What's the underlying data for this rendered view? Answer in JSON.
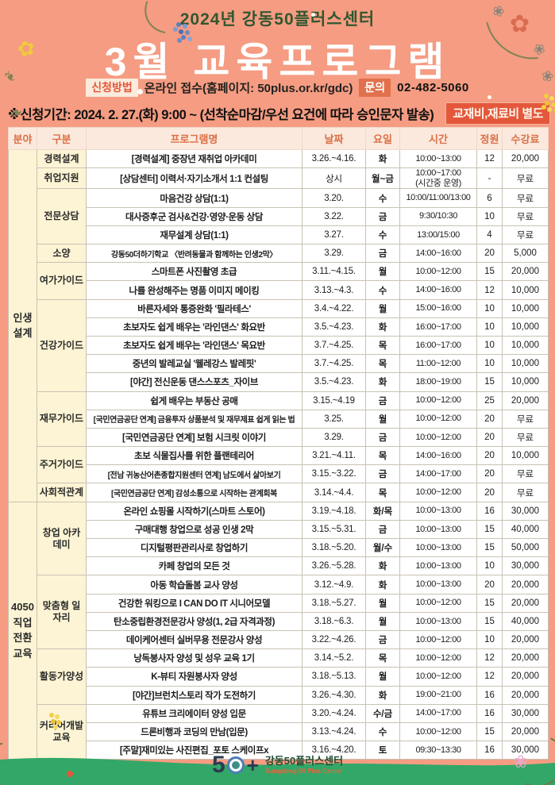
{
  "header": {
    "subtitle": "2024년 강동50플러스센터",
    "title": "3월 교육프로그램",
    "apply": {
      "label": "신청방법",
      "text": "온라인 접수(홈페이지: 50plus.or.kr/gdc)"
    },
    "contact": {
      "label": "문의",
      "phone": "02-482-5060"
    },
    "period": "※신청기간: 2024. 2. 27.(화) 9:00 ~ (선착순마감/우선 요건에 따라 승인문자 발송)",
    "fee_note": "교재비,재료비 별도"
  },
  "table": {
    "columns": [
      "분야",
      "구분",
      "프로그램명",
      "날짜",
      "요일",
      "시간",
      "정원",
      "수강료"
    ],
    "sections": [
      {
        "field": "인생\n설계",
        "groups": [
          {
            "name": "경력설계",
            "rows": [
              {
                "name": "[경력설계] 중장년 재취업 아카데미",
                "date": "3.26.~4.16.",
                "day": "화",
                "time": "10:00~13:00",
                "capacity": "12",
                "fee": "20,000"
              }
            ]
          },
          {
            "name": "취업지원",
            "rows": [
              {
                "name": "[상담센터] 이력서·자기소개서 1:1 컨설팅",
                "date": "상시",
                "day": "월~금",
                "time": "10:00~17:00\n(시간중 운영)",
                "capacity": "-",
                "fee": "무료"
              }
            ]
          },
          {
            "name": "전문상담",
            "rows": [
              {
                "name": "마음건강 상담(1:1)",
                "date": "3.20.",
                "day": "수",
                "time": "10:00/11:00/13:00",
                "capacity": "6",
                "fee": "무료"
              },
              {
                "name": "대사증후군 검사&건강·영양·운동 상담",
                "date": "3.22.",
                "day": "금",
                "time": "9:30/10:30",
                "capacity": "10",
                "fee": "무료"
              },
              {
                "name": "재무설계 상담(1:1)",
                "date": "3.27.",
                "day": "수",
                "time": "13:00/15:00",
                "capacity": "4",
                "fee": "무료"
              }
            ]
          },
          {
            "name": "소양",
            "rows": [
              {
                "name": "강동50더하기학교 〈반려동물과 함께하는 인생2막〉",
                "date": "3.29.",
                "day": "금",
                "time": "14:00~16:00",
                "capacity": "20",
                "fee": "5,000"
              }
            ]
          },
          {
            "name": "여가가이드",
            "rows": [
              {
                "name": "스마트폰 사진촬영 초급",
                "date": "3.11.~4.15.",
                "day": "월",
                "time": "10:00~12:00",
                "capacity": "15",
                "fee": "20,000"
              },
              {
                "name": "나를 완성해주는 명품 이미지 메이킹",
                "date": "3.13.~4.3.",
                "day": "수",
                "time": "14:00~16:00",
                "capacity": "12",
                "fee": "10,000"
              }
            ]
          },
          {
            "name": "건강가이드",
            "rows": [
              {
                "name": "바른자세와 통증완화 '필라테스'",
                "date": "3.4.~4.22.",
                "day": "월",
                "time": "15:00~16:00",
                "capacity": "10",
                "fee": "10,000"
              },
              {
                "name": "초보자도 쉽게 배우는 '라인댄스' 화요반",
                "date": "3.5.~4.23.",
                "day": "화",
                "time": "16:00~17:00",
                "capacity": "10",
                "fee": "10,000"
              },
              {
                "name": "초보자도 쉽게 배우는 '라인댄스' 목요반",
                "date": "3.7.~4.25.",
                "day": "목",
                "time": "16:00~17:00",
                "capacity": "10",
                "fee": "10,000"
              },
              {
                "name": "중년의 발레교실 '웰레강스 발레핏'",
                "date": "3.7.~4.25.",
                "day": "목",
                "time": "11:00~12:00",
                "capacity": "10",
                "fee": "10,000"
              },
              {
                "name": "[야간] 전신운동 댄스스포츠_자이브",
                "date": "3.5.~4.23.",
                "day": "화",
                "time": "18:00~19:00",
                "capacity": "15",
                "fee": "10,000"
              }
            ]
          },
          {
            "name": "재무가이드",
            "rows": [
              {
                "name": "쉽게 배우는 부동산 공매",
                "date": "3.15.~4.19",
                "day": "금",
                "time": "10:00~12:00",
                "capacity": "25",
                "fee": "20,000"
              },
              {
                "name": "[국민연금공단 연계] 금융투자 상품분석 및 재무제표 쉽게 읽는 법",
                "date": "3.25.",
                "day": "월",
                "time": "10:00~12:00",
                "capacity": "20",
                "fee": "무료"
              },
              {
                "name": "[국민연금공단 연계] 보험 시크릿 이야기",
                "date": "3.29.",
                "day": "금",
                "time": "10:00~12:00",
                "capacity": "20",
                "fee": "무료"
              }
            ]
          },
          {
            "name": "주거가이드",
            "rows": [
              {
                "name": "초보 식물집사를 위한 플랜테리어",
                "date": "3.21.~4.11.",
                "day": "목",
                "time": "14:00~16:00",
                "capacity": "20",
                "fee": "10,000"
              },
              {
                "name": "[전남 귀농산어촌종합지원센터 연계] 남도에서 살아보기",
                "date": "3.15.~3.22.",
                "day": "금",
                "time": "14:00~17:00",
                "capacity": "20",
                "fee": "무료"
              }
            ]
          },
          {
            "name": "사회적관계",
            "rows": [
              {
                "name": "[국민연금공단 연계] 감성소통으로 시작하는 관계회복",
                "date": "3.14.~4.4.",
                "day": "목",
                "time": "10:00~12:00",
                "capacity": "20",
                "fee": "무료"
              }
            ]
          }
        ]
      },
      {
        "field": "4050\n직업\n전환\n교육",
        "groups": [
          {
            "name": "창업 아카데미",
            "rows": [
              {
                "name": "온라인 쇼핑몰 시작하기(스마트 스토어)",
                "date": "3.19.~4.18.",
                "day": "화/목",
                "time": "10:00~13:00",
                "capacity": "16",
                "fee": "30,000"
              },
              {
                "name": "구매대행 창업으로 성공 인생 2막",
                "date": "3.15.~5.31.",
                "day": "금",
                "time": "10:00~13:00",
                "capacity": "15",
                "fee": "40,000"
              },
              {
                "name": "디지털평판관리사로 창업하기",
                "date": "3.18.~5.20.",
                "day": "월/수",
                "time": "10:00~13:00",
                "capacity": "15",
                "fee": "50,000"
              },
              {
                "name": "카페 창업의 모든 것",
                "date": "3.26.~5.28.",
                "day": "화",
                "time": "10:00~13:00",
                "capacity": "10",
                "fee": "30,000"
              }
            ]
          },
          {
            "name": "맞춤형 일자리",
            "rows": [
              {
                "name": "아동 학습돌봄 교사 양성",
                "date": "3.12.~4.9.",
                "day": "화",
                "time": "10:00~13:00",
                "capacity": "20",
                "fee": "20,000"
              },
              {
                "name": "건강한 워킹으로 I CAN DO IT 시니어모델",
                "date": "3.18.~5.27.",
                "day": "월",
                "time": "10:00~12:00",
                "capacity": "15",
                "fee": "20,000"
              },
              {
                "name": "탄소중립환경전문강사 양성(1, 2급 자격과정)",
                "date": "3.18.~6.3.",
                "day": "월",
                "time": "10:00~13:00",
                "capacity": "15",
                "fee": "40,000"
              },
              {
                "name": "데이케어센터 실버무용 전문강사 양성",
                "date": "3.22.~4.26.",
                "day": "금",
                "time": "10:00~12:00",
                "capacity": "10",
                "fee": "20,000"
              }
            ]
          },
          {
            "name": "활동가양성",
            "rows": [
              {
                "name": "낭독봉사자 양성 및 성우 교육 1기",
                "date": "3.14.~5.2.",
                "day": "목",
                "time": "10:00~12:00",
                "capacity": "12",
                "fee": "20,000"
              },
              {
                "name": "K-뷰티 자원봉사자 양성",
                "date": "3.18.~5.13.",
                "day": "월",
                "time": "10:00~12:00",
                "capacity": "12",
                "fee": "20,000"
              },
              {
                "name": "[야간]브런치스토리 작가 도전하기",
                "date": "3.26.~4.30.",
                "day": "화",
                "time": "19:00~21:00",
                "capacity": "16",
                "fee": "20,000"
              }
            ]
          },
          {
            "name": "커리어개발 교육",
            "rows": [
              {
                "name": "유튜브 크리에이터 양성 입문",
                "date": "3.20.~4.24.",
                "day": "수/금",
                "time": "14:00~17:00",
                "capacity": "16",
                "fee": "30,000"
              },
              {
                "name": "드론비행과 코딩의 만남(입문)",
                "date": "3.13.~4.24.",
                "day": "수",
                "time": "10:00~12:00",
                "capacity": "15",
                "fee": "20,000"
              },
              {
                "name": "[주말]재미있는 사진편집_포토 스케이프x",
                "date": "3.16.~4.20.",
                "day": "토",
                "time": "09:30~13:30",
                "capacity": "16",
                "fee": "30,000"
              }
            ]
          }
        ]
      }
    ]
  },
  "footer": {
    "logo_5": "5",
    "logo_plus": "+",
    "name_ko": "강동50플러스센터",
    "name_en": "Gangdong 50 Plus Center"
  },
  "colors": {
    "background": "#F59C82",
    "title_green": "#31572F",
    "accent_orange": "#E4573B",
    "table_header_bg": "#FBE9DD",
    "table_header_text": "#DB6F45",
    "category_bg": "#FCF4D4",
    "footer_band_green": "#32A768"
  }
}
